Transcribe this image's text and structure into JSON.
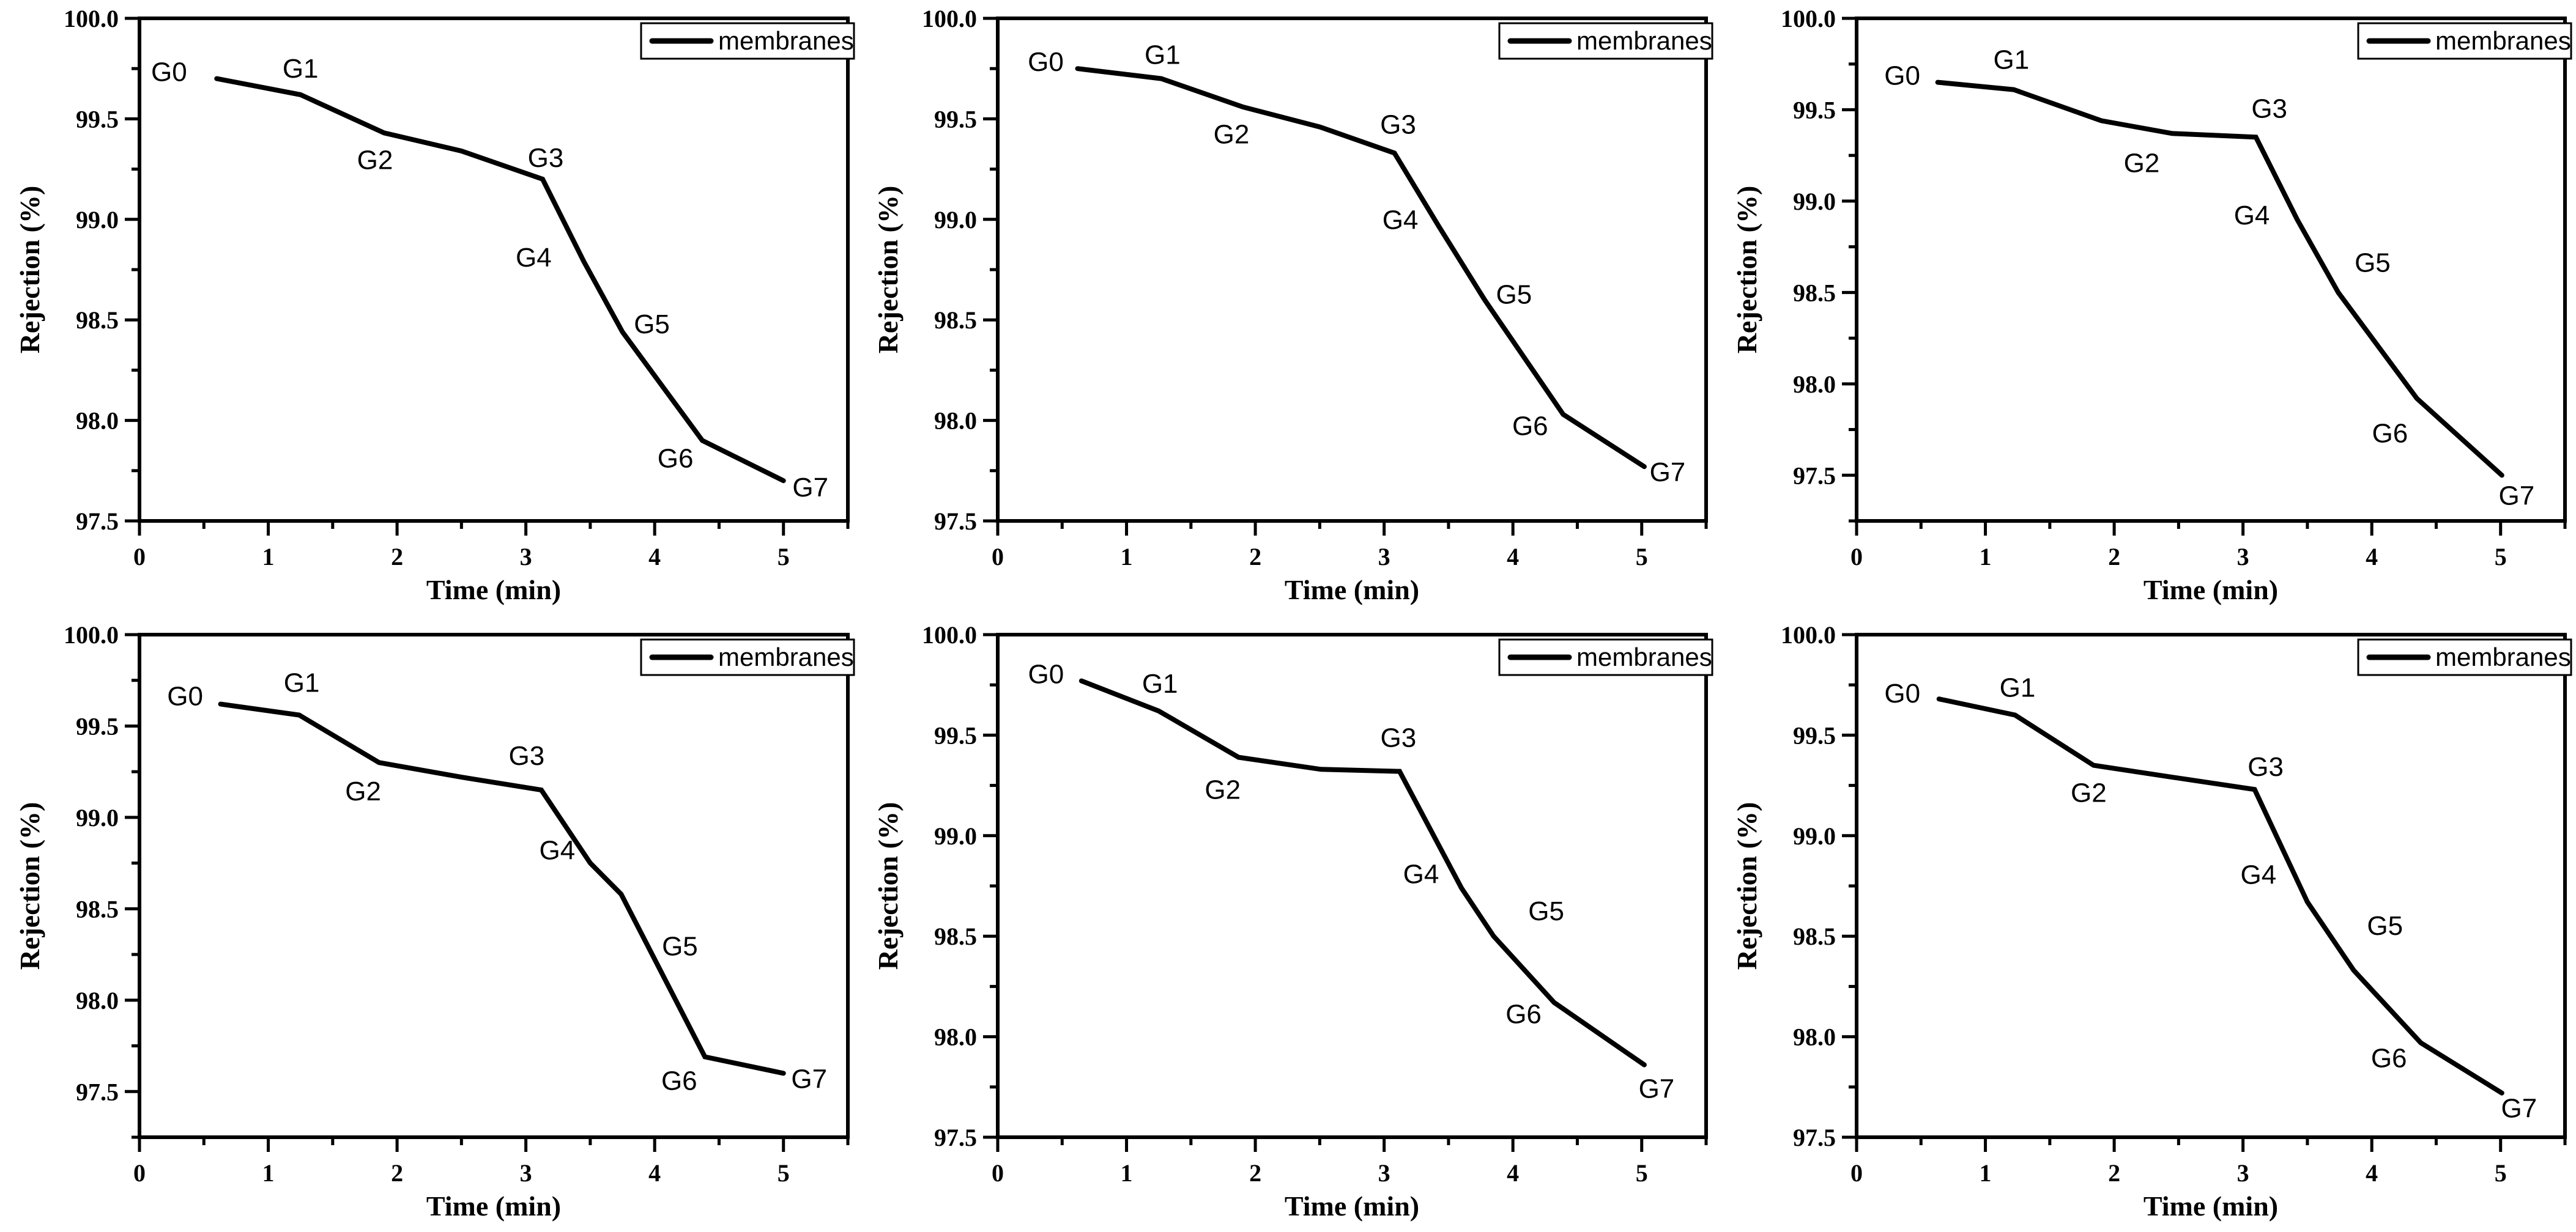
{
  "figure": {
    "background": "#ffffff",
    "ink_color": "#000000",
    "rows": 2,
    "cols": 3
  },
  "shared": {
    "xlabel": "Time (min)",
    "ylabel": "Rejection (%)",
    "legend_label": "membranes",
    "x_tick_labels": [
      "0",
      "1",
      "2",
      "3",
      "4",
      "5"
    ],
    "x_ticks": [
      0,
      1,
      2,
      3,
      4,
      5
    ],
    "x_minor_ticks": [
      0.5,
      1.5,
      2.5,
      3.5,
      4.5,
      5.5
    ],
    "xlim": [
      0,
      5.5
    ],
    "y_tick_labels": [
      "100.0",
      "99.5",
      "99.0",
      "98.5",
      "98.0",
      "97.5"
    ],
    "y_ticks": [
      100.0,
      99.5,
      99.0,
      98.5,
      98.0,
      97.5
    ],
    "y_minor_ticks": [
      99.75,
      99.25,
      98.75,
      98.25,
      97.75,
      97.25
    ],
    "grid": "off",
    "legend_position": "top-right"
  },
  "chart_data": [
    {
      "type": "line",
      "position": "top-left",
      "series_name": "membranes",
      "xlim": [
        0,
        5.5
      ],
      "ylim": [
        97.5,
        100.0
      ],
      "points": [
        {
          "label": "G0",
          "t": 0.6,
          "value": 99.7,
          "offset": [
            -78,
            -10
          ]
        },
        {
          "label": "G1",
          "t": 1.25,
          "value": 99.62,
          "offset": [
            0,
            -42
          ]
        },
        {
          "label": "G2",
          "t": 1.9,
          "value": 99.43,
          "offset": [
            -15,
            45
          ]
        },
        {
          "label": "G3",
          "t": 3.13,
          "value": 99.2,
          "offset": [
            5,
            -34
          ]
        },
        {
          "label": "G4",
          "t": 3.45,
          "value": 98.79,
          "offset": [
            -82,
            -6
          ]
        },
        {
          "label": "G5",
          "t": 3.75,
          "value": 98.44,
          "offset": [
            48,
            -12
          ]
        },
        {
          "label": "G6",
          "t": 4.37,
          "value": 97.9,
          "offset": [
            -44,
            30
          ]
        },
        {
          "label": "G7",
          "t": 5.0,
          "value": 97.7,
          "offset": [
            44,
            12
          ]
        }
      ],
      "extra_vertex": {
        "after_label": "G2",
        "t": 2.5,
        "value": 99.34
      }
    },
    {
      "type": "line",
      "position": "top-middle",
      "series_name": "membranes",
      "xlim": [
        0,
        5.5
      ],
      "ylim": [
        97.5,
        100.0
      ],
      "points": [
        {
          "label": "G0",
          "t": 0.62,
          "value": 99.75,
          "offset": [
            -52,
            -10
          ]
        },
        {
          "label": "G1",
          "t": 1.27,
          "value": 99.7,
          "offset": [
            2,
            -38
          ]
        },
        {
          "label": "G2",
          "t": 1.9,
          "value": 99.56,
          "offset": [
            -18,
            46
          ]
        },
        {
          "label": "G3",
          "t": 3.08,
          "value": 99.33,
          "offset": [
            6,
            -46
          ]
        },
        {
          "label": "G4",
          "t": 3.42,
          "value": 98.97,
          "offset": [
            -62,
            -8
          ]
        },
        {
          "label": "G5",
          "t": 3.78,
          "value": 98.6,
          "offset": [
            48,
            -8
          ]
        },
        {
          "label": "G6",
          "t": 4.39,
          "value": 98.03,
          "offset": [
            -54,
            20
          ]
        },
        {
          "label": "G7",
          "t": 5.02,
          "value": 97.77,
          "offset": [
            38,
            10
          ]
        }
      ],
      "extra_vertex": {
        "after_label": "G2",
        "t": 2.5,
        "value": 99.46
      }
    },
    {
      "type": "line",
      "position": "top-right",
      "series_name": "membranes",
      "xlim": [
        0,
        5.5
      ],
      "ylim": [
        97.25,
        100.0
      ],
      "points": [
        {
          "label": "G0",
          "t": 0.63,
          "value": 99.65,
          "offset": [
            -58,
            -10
          ]
        },
        {
          "label": "G1",
          "t": 1.22,
          "value": 99.61,
          "offset": [
            -4,
            -48
          ]
        },
        {
          "label": "G2",
          "t": 1.9,
          "value": 99.44,
          "offset": [
            66,
            70
          ]
        },
        {
          "label": "G3",
          "t": 3.1,
          "value": 99.35,
          "offset": [
            22,
            -46
          ]
        },
        {
          "label": "G4",
          "t": 3.42,
          "value": 98.9,
          "offset": [
            -74,
            -6
          ]
        },
        {
          "label": "G5",
          "t": 3.74,
          "value": 98.5,
          "offset": [
            56,
            -48
          ]
        },
        {
          "label": "G6",
          "t": 4.35,
          "value": 97.92,
          "offset": [
            -44,
            58
          ]
        },
        {
          "label": "G7",
          "t": 5.01,
          "value": 97.5,
          "offset": [
            24,
            34
          ]
        }
      ],
      "extra_vertex": {
        "after_label": "G2",
        "t": 2.45,
        "value": 99.37
      }
    },
    {
      "type": "line",
      "position": "bottom-left",
      "series_name": "membranes",
      "xlim": [
        0,
        5.5
      ],
      "ylim": [
        97.25,
        100.0
      ],
      "points": [
        {
          "label": "G0",
          "t": 0.63,
          "value": 99.62,
          "offset": [
            -58,
            -12
          ]
        },
        {
          "label": "G1",
          "t": 1.24,
          "value": 99.56,
          "offset": [
            4,
            -52
          ]
        },
        {
          "label": "G2",
          "t": 1.86,
          "value": 99.3,
          "offset": [
            -26,
            48
          ]
        },
        {
          "label": "G3",
          "t": 3.12,
          "value": 99.15,
          "offset": [
            -24,
            -55
          ]
        },
        {
          "label": "G4",
          "t": 3.5,
          "value": 98.75,
          "offset": [
            -54,
            -20
          ]
        },
        {
          "label": "G5",
          "t": 3.74,
          "value": 98.58,
          "offset": [
            96,
            86
          ]
        },
        {
          "label": "G6",
          "t": 4.39,
          "value": 97.69,
          "offset": [
            -42,
            40
          ]
        },
        {
          "label": "G7",
          "t": 5.0,
          "value": 97.6,
          "offset": [
            42,
            10
          ]
        }
      ],
      "extra_vertex": {
        "after_label": "G2",
        "t": 2.5,
        "value": 99.22
      }
    },
    {
      "type": "line",
      "position": "bottom-middle",
      "series_name": "membranes",
      "xlim": [
        0,
        5.5
      ],
      "ylim": [
        97.5,
        100.0
      ],
      "points": [
        {
          "label": "G0",
          "t": 0.65,
          "value": 99.77,
          "offset": [
            -58,
            -10
          ]
        },
        {
          "label": "G1",
          "t": 1.25,
          "value": 99.62,
          "offset": [
            2,
            -44
          ]
        },
        {
          "label": "G2",
          "t": 1.87,
          "value": 99.39,
          "offset": [
            -26,
            54
          ]
        },
        {
          "label": "G3",
          "t": 3.12,
          "value": 99.32,
          "offset": [
            -2,
            -54
          ]
        },
        {
          "label": "G4",
          "t": 3.6,
          "value": 98.74,
          "offset": [
            -66,
            -22
          ]
        },
        {
          "label": "G5",
          "t": 3.85,
          "value": 98.5,
          "offset": [
            86,
            -40
          ]
        },
        {
          "label": "G6",
          "t": 4.32,
          "value": 98.17,
          "offset": [
            -50,
            20
          ]
        },
        {
          "label": "G7",
          "t": 5.02,
          "value": 97.86,
          "offset": [
            20,
            40
          ]
        }
      ],
      "extra_vertex": {
        "after_label": "G2",
        "t": 2.51,
        "value": 99.33
      }
    },
    {
      "type": "line",
      "position": "bottom-right",
      "series_name": "membranes",
      "xlim": [
        0,
        5.5
      ],
      "ylim": [
        97.5,
        100.0
      ],
      "points": [
        {
          "label": "G0",
          "t": 0.64,
          "value": 99.68,
          "offset": [
            -60,
            -8
          ]
        },
        {
          "label": "G1",
          "t": 1.23,
          "value": 99.6,
          "offset": [
            4,
            -44
          ]
        },
        {
          "label": "G2",
          "t": 1.84,
          "value": 99.35,
          "offset": [
            -8,
            46
          ]
        },
        {
          "label": "G3",
          "t": 3.09,
          "value": 99.23,
          "offset": [
            18,
            -36
          ]
        },
        {
          "label": "G4",
          "t": 3.5,
          "value": 98.67,
          "offset": [
            -80,
            -44
          ]
        },
        {
          "label": "G5",
          "t": 3.86,
          "value": 98.33,
          "offset": [
            51,
            -72
          ]
        },
        {
          "label": "G6",
          "t": 4.38,
          "value": 97.97,
          "offset": [
            -52,
            26
          ]
        },
        {
          "label": "G7",
          "t": 5.01,
          "value": 97.72,
          "offset": [
            28,
            26
          ]
        }
      ],
      "extra_vertex": {
        "after_label": "G2",
        "t": 2.46,
        "value": 99.29
      }
    }
  ]
}
